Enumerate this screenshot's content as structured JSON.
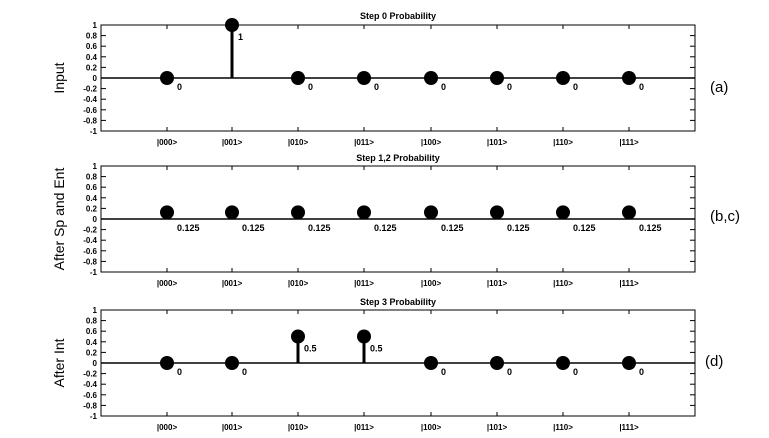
{
  "chart_data": [
    {
      "type": "stem",
      "title": "Step 0 Probability",
      "ylabel": "Input",
      "panel_label": "(a)",
      "categories": [
        "|000>",
        "|001>",
        "|010>",
        "|011>",
        "|100>",
        "|101>",
        "|110>",
        "|111>"
      ],
      "values": [
        0,
        1,
        0,
        0,
        0,
        0,
        0,
        0
      ],
      "value_labels": [
        "0",
        "1",
        "0",
        "0",
        "0",
        "0",
        "0",
        "0"
      ],
      "ylim": [
        -1,
        1
      ],
      "yticks": [
        "1",
        "0.8",
        "0.6",
        "0.4",
        "0.2",
        "0",
        "-0.2",
        "-0.4",
        "-0.6",
        "-0.8",
        "-1"
      ]
    },
    {
      "type": "stem",
      "title": "Step 1,2 Probability",
      "ylabel": "After Sp and Ent",
      "panel_label": "(b,c)",
      "categories": [
        "|000>",
        "|001>",
        "|010>",
        "|011>",
        "|100>",
        "|101>",
        "|110>",
        "|111>"
      ],
      "values": [
        0.125,
        0.125,
        0.125,
        0.125,
        0.125,
        0.125,
        0.125,
        0.125
      ],
      "value_labels": [
        "0.125",
        "0.125",
        "0.125",
        "0.125",
        "0.125",
        "0.125",
        "0.125",
        "0.125"
      ],
      "ylim": [
        -1,
        1
      ],
      "yticks": [
        "1",
        "0.8",
        "0.6",
        "0.4",
        "0.2",
        "0",
        "-0.2",
        "-0.4",
        "-0.6",
        "-0.8",
        "-1"
      ]
    },
    {
      "type": "stem",
      "title": "Step 3 Probability",
      "ylabel": "After Int",
      "panel_label": "(d)",
      "categories": [
        "|000>",
        "|001>",
        "|010>",
        "|011>",
        "|100>",
        "|101>",
        "|110>",
        "|111>"
      ],
      "values": [
        0,
        0,
        0.5,
        0.5,
        0,
        0,
        0,
        0
      ],
      "value_labels": [
        "0",
        "0",
        "0.5",
        "0.5",
        "0",
        "0",
        "0",
        "0"
      ],
      "ylim": [
        -1,
        1
      ],
      "yticks": [
        "1",
        "0.8",
        "0.6",
        "0.4",
        "0.2",
        "0",
        "-0.2",
        "-0.4",
        "-0.6",
        "-0.8",
        "-1"
      ]
    }
  ]
}
